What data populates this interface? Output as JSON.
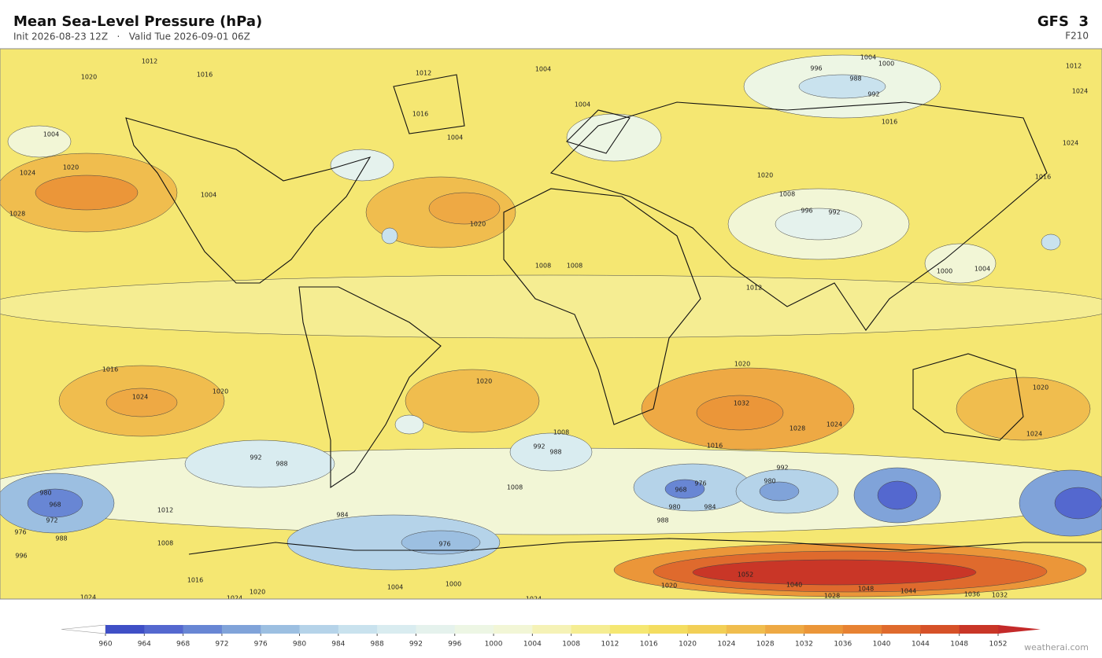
{
  "header": {
    "title": "Mean Sea-Level Pressure  (hPa)",
    "subtitle": "Init 2026-08-23 12Z   ·   Valid Tue 2026-09-01 06Z",
    "model": "GFS  3",
    "forecast_hour": "F210"
  },
  "map": {
    "background_bin": 13,
    "contour_labels": [
      1012,
      1020,
      1016,
      1012,
      1004,
      1004,
      1000,
      996,
      988,
      992,
      1004,
      1004,
      1016,
      1016,
      1012,
      1024,
      1024,
      1004,
      1024,
      1020,
      1028,
      1004,
      1020,
      1020,
      1016,
      1008,
      996,
      992,
      1000,
      1004,
      1012,
      1008,
      1008,
      1016,
      1024,
      1020,
      1020,
      1020,
      1032,
      1028,
      1024,
      1016,
      1008,
      992,
      988,
      1008,
      992,
      980,
      968,
      976,
      980,
      984,
      988,
      984,
      976,
      980,
      968,
      972,
      976,
      988,
      996,
      1012,
      1008,
      1016,
      1020,
      1004,
      1000,
      1020,
      1040,
      1048,
      1052,
      1044,
      1028,
      1024,
      1024,
      1024,
      1036,
      1032,
      1020,
      1024,
      988,
      992
    ]
  },
  "colorbar": {
    "ticks": [
      960,
      964,
      968,
      972,
      976,
      980,
      984,
      988,
      992,
      996,
      1000,
      1004,
      1008,
      1012,
      1016,
      1020,
      1024,
      1028,
      1032,
      1036,
      1040,
      1044,
      1048,
      1052
    ],
    "colors": [
      "#3f4fc6",
      "#5468cf",
      "#6886d4",
      "#80a3d9",
      "#9cbfe1",
      "#b5d3e9",
      "#c9e2ee",
      "#d9ecf0",
      "#e5f2ed",
      "#edf6e4",
      "#f2f6d6",
      "#f5f2b6",
      "#f5ed92",
      "#f5e772",
      "#f4dd60",
      "#f2cf56",
      "#f0bd4e",
      "#eea944",
      "#eb9639",
      "#e78233",
      "#df6a2d",
      "#d65128",
      "#c93627"
    ],
    "under_color": "#ffffff",
    "over_color": "#c42a2a"
  },
  "footer": {
    "credit": "weatherai.com"
  }
}
